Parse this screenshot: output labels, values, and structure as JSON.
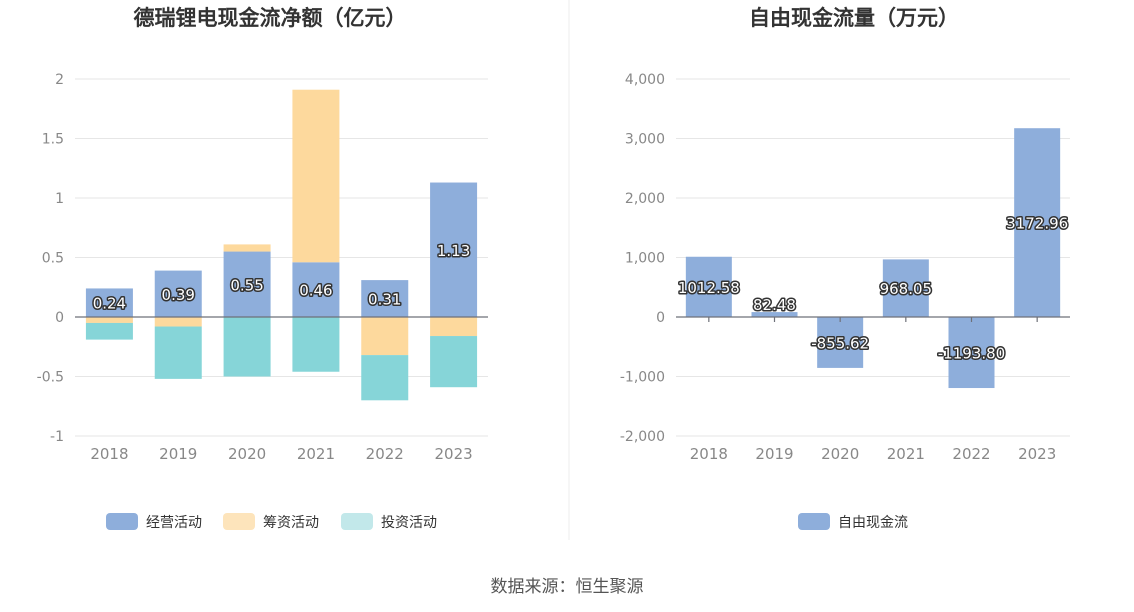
{
  "chart_data": [
    {
      "type": "bar",
      "stacked": true,
      "title": "德瑞锂电现金流净额（亿元）",
      "categories": [
        "2018",
        "2019",
        "2020",
        "2021",
        "2022",
        "2023"
      ],
      "series": [
        {
          "name": "经营活动",
          "color": "#8eaedb",
          "values": [
            0.24,
            0.39,
            0.55,
            0.46,
            0.31,
            1.13
          ],
          "labels": [
            "0.24",
            "0.39",
            "0.55",
            "0.46",
            "0.31",
            "1.13"
          ]
        },
        {
          "name": "筹资活动",
          "color": "#fdd99d",
          "values": [
            -0.05,
            -0.08,
            0.06,
            1.45,
            -0.32,
            -0.16
          ]
        },
        {
          "name": "投资活动",
          "color": "#86d5d8",
          "values": [
            -0.14,
            -0.44,
            -0.5,
            -0.46,
            -0.38,
            -0.43
          ]
        }
      ],
      "legend_colors": [
        "#8eaedb",
        "#fde4bb",
        "#c2e8ea"
      ],
      "ylim": [
        -1,
        2
      ],
      "yticks": [
        "2",
        "1.5",
        "1",
        "0.5",
        "0",
        "-0.5",
        "-1"
      ],
      "ytick_values": [
        2,
        1.5,
        1,
        0.5,
        0,
        -0.5,
        -1
      ],
      "grid": true,
      "legend": "bottom"
    },
    {
      "type": "bar",
      "title": "自由现金流量（万元）",
      "categories": [
        "2018",
        "2019",
        "2020",
        "2021",
        "2022",
        "2023"
      ],
      "series": [
        {
          "name": "自由现金流",
          "color": "#8eaedb",
          "values": [
            1012.58,
            82.48,
            -855.62,
            968.05,
            -1193.8,
            3172.96
          ],
          "labels": [
            "1012.58",
            "82.48",
            "-855.62",
            "968.05",
            "-1193.80",
            "3172.96"
          ]
        }
      ],
      "ylim": [
        -2000,
        4000
      ],
      "yticks": [
        "4,000",
        "3,000",
        "2,000",
        "1,000",
        "0",
        "-1,000",
        "-2,000"
      ],
      "ytick_values": [
        4000,
        3000,
        2000,
        1000,
        0,
        -1000,
        -2000
      ],
      "grid": true,
      "legend": "bottom"
    }
  ],
  "footer": {
    "source": "数据来源：恒生聚源"
  }
}
